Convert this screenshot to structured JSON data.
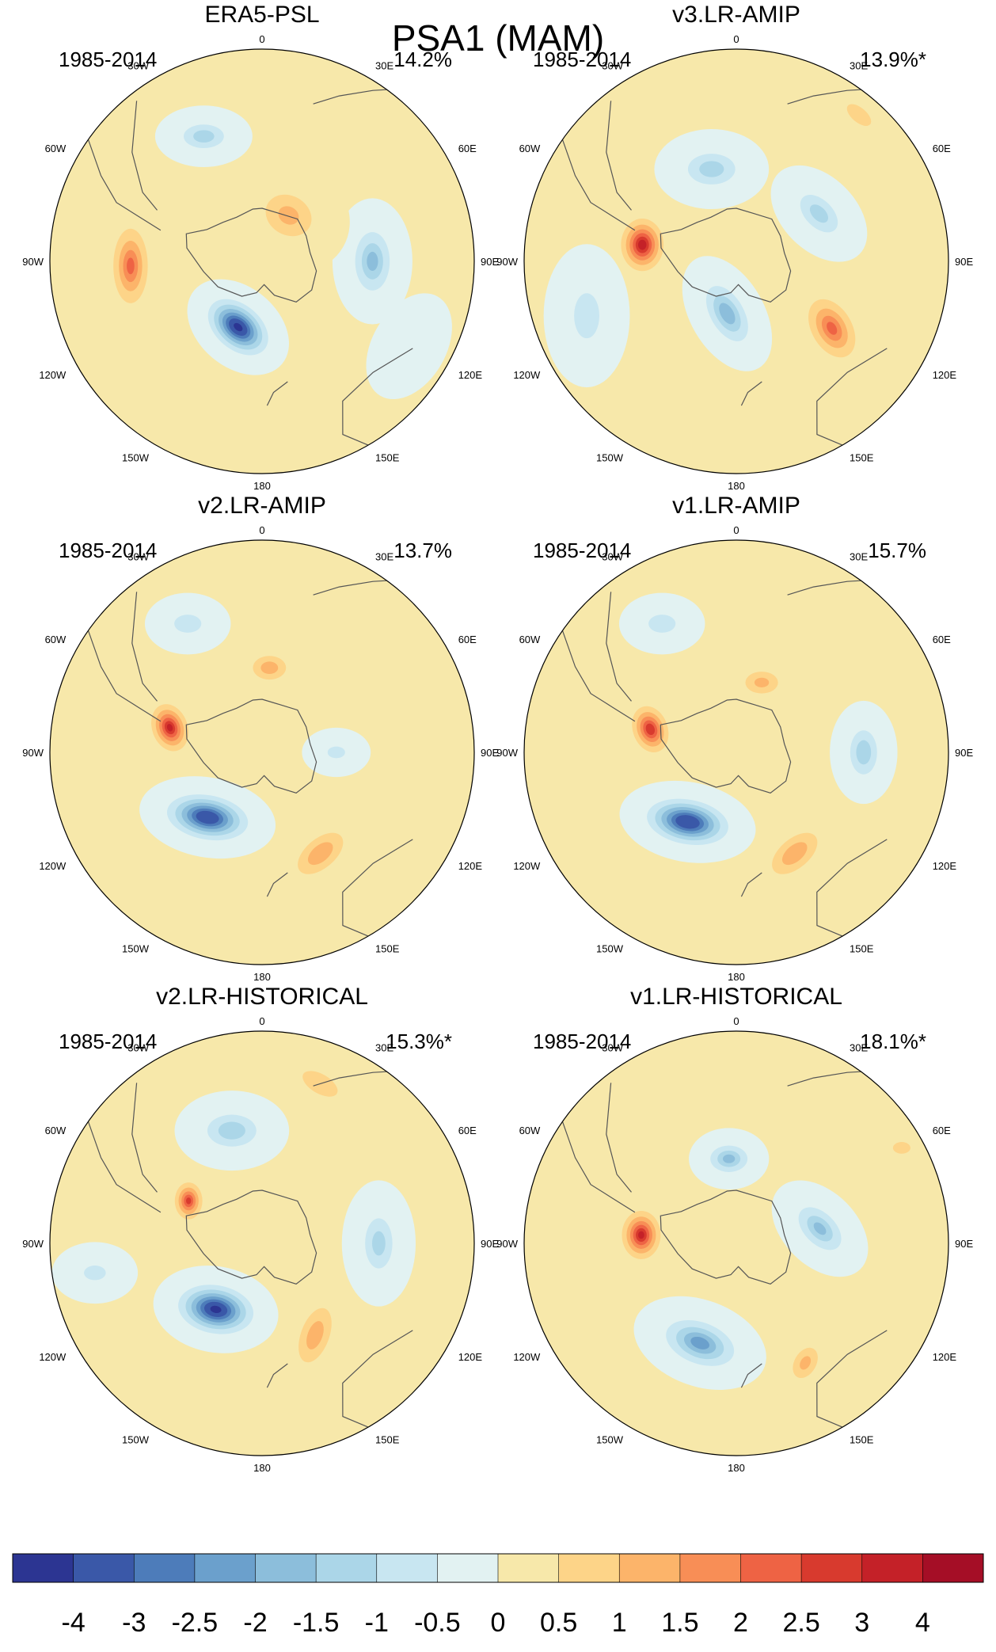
{
  "figure": {
    "title": "PSA1 (MAM)"
  },
  "chart_data": {
    "type": "heatmap",
    "title": "PSA1 (MAM)",
    "projection": "south polar stereographic",
    "lon_labels": [
      "0",
      "30E",
      "60E",
      "90E",
      "120E",
      "150E",
      "180",
      "150W",
      "120W",
      "90W",
      "60W",
      "30W"
    ],
    "colorbar": {
      "labels": [
        "-4",
        "-3",
        "-2.5",
        "-2",
        "-1.5",
        "-1",
        "-0.5",
        "0",
        "0.5",
        "1",
        "1.5",
        "2",
        "2.5",
        "3",
        "4"
      ],
      "colors": [
        "#2c3592",
        "#3a58a8",
        "#4d7cba",
        "#6ba0cc",
        "#8cbedb",
        "#abd6e8",
        "#c8e6f1",
        "#e2f2f2",
        "#f7e8aa",
        "#fdd488",
        "#fcb46a",
        "#f88e56",
        "#ee6344",
        "#d83a2e",
        "#c42128",
        "#a50e26"
      ]
    },
    "panels": [
      {
        "title": "ERA5-PSL",
        "period": "1985-2014",
        "variance": "14.2%",
        "features": [
          {
            "lon": 200,
            "r": 0.33,
            "value": -4.0,
            "a": 0.2,
            "b": 0.13,
            "rot": 40
          },
          {
            "lon": 268,
            "r": 0.62,
            "value": 2.0,
            "a": 0.26,
            "b": 0.12,
            "rot": 90
          },
          {
            "lon": 90,
            "r": 0.52,
            "value": -1.6,
            "a": 0.22,
            "b": 0.13,
            "rot": 90
          },
          {
            "lon": 335,
            "r": 0.65,
            "value": -1.2,
            "a": 0.17,
            "b": 0.1,
            "rot": 0
          },
          {
            "lon": 30,
            "r": 0.25,
            "value": 1.0,
            "a": 0.22,
            "b": 0.18,
            "rot": 30
          },
          {
            "lon": 120,
            "r": 0.8,
            "value": -0.4,
            "a": 0.2,
            "b": 0.12,
            "rot": 120
          }
        ]
      },
      {
        "title": "v3.LR-AMIP",
        "period": "1985-2014",
        "variance": "13.9%*",
        "features": [
          {
            "lon": 280,
            "r": 0.45,
            "value": 3.2,
            "a": 0.16,
            "b": 0.13,
            "rot": 90
          },
          {
            "lon": 125,
            "r": 0.55,
            "value": 2.0,
            "a": 0.22,
            "b": 0.14,
            "rot": 60
          },
          {
            "lon": 190,
            "r": 0.25,
            "value": -1.8,
            "a": 0.22,
            "b": 0.12,
            "rot": 60
          },
          {
            "lon": 345,
            "r": 0.45,
            "value": -1.2,
            "a": 0.2,
            "b": 0.13,
            "rot": 0
          },
          {
            "lon": 60,
            "r": 0.45,
            "value": -1.1,
            "a": 0.2,
            "b": 0.12,
            "rot": 45
          },
          {
            "lon": 250,
            "r": 0.75,
            "value": -0.7,
            "a": 0.25,
            "b": 0.14,
            "rot": 90
          },
          {
            "lon": 40,
            "r": 0.9,
            "value": 0.5,
            "a": 0.2,
            "b": 0.1,
            "rot": 40
          }
        ]
      },
      {
        "title": "v2.LR-AMIP",
        "period": "1985-2014",
        "variance": "13.7%",
        "features": [
          {
            "lon": 285,
            "r": 0.45,
            "value": 3.0,
            "a": 0.15,
            "b": 0.11,
            "rot": 70
          },
          {
            "lon": 220,
            "r": 0.4,
            "value": -3.8,
            "a": 0.24,
            "b": 0.13,
            "rot": 10
          },
          {
            "lon": 150,
            "r": 0.55,
            "value": 1.3,
            "a": 0.22,
            "b": 0.12,
            "rot": 140
          },
          {
            "lon": 5,
            "r": 0.4,
            "value": 1.2,
            "a": 0.14,
            "b": 0.1,
            "rot": 0
          },
          {
            "lon": 330,
            "r": 0.7,
            "value": -0.7,
            "a": 0.15,
            "b": 0.1,
            "rot": 0
          },
          {
            "lon": 90,
            "r": 0.35,
            "value": -0.5,
            "a": 0.12,
            "b": 0.08,
            "rot": 0
          }
        ]
      },
      {
        "title": "v1.LR-AMIP",
        "period": "1985-2014",
        "variance": "15.7%",
        "features": [
          {
            "lon": 285,
            "r": 0.42,
            "value": 2.8,
            "a": 0.15,
            "b": 0.11,
            "rot": 70
          },
          {
            "lon": 215,
            "r": 0.4,
            "value": -3.9,
            "a": 0.24,
            "b": 0.13,
            "rot": 10
          },
          {
            "lon": 150,
            "r": 0.55,
            "value": 1.3,
            "a": 0.22,
            "b": 0.12,
            "rot": 140
          },
          {
            "lon": 90,
            "r": 0.6,
            "value": -1.3,
            "a": 0.18,
            "b": 0.11,
            "rot": 90
          },
          {
            "lon": 330,
            "r": 0.7,
            "value": -0.7,
            "a": 0.15,
            "b": 0.1,
            "rot": 0
          },
          {
            "lon": 20,
            "r": 0.35,
            "value": 1.0,
            "a": 0.15,
            "b": 0.1,
            "rot": 0
          }
        ]
      },
      {
        "title": "v2.LR-HISTORICAL",
        "period": "1985-2014",
        "variance": "15.3%*",
        "features": [
          {
            "lon": 215,
            "r": 0.38,
            "value": -4.0,
            "a": 0.22,
            "b": 0.14,
            "rot": 10
          },
          {
            "lon": 300,
            "r": 0.4,
            "value": 2.5,
            "a": 0.12,
            "b": 0.09,
            "rot": 90
          },
          {
            "lon": 150,
            "r": 0.5,
            "value": 1.2,
            "a": 0.24,
            "b": 0.12,
            "rot": 110
          },
          {
            "lon": 345,
            "r": 0.55,
            "value": -1.3,
            "a": 0.2,
            "b": 0.13,
            "rot": 0
          },
          {
            "lon": 90,
            "r": 0.55,
            "value": -1.1,
            "a": 0.22,
            "b": 0.12,
            "rot": 90
          },
          {
            "lon": 20,
            "r": 0.8,
            "value": 0.8,
            "a": 0.2,
            "b": 0.1,
            "rot": 30
          },
          {
            "lon": 260,
            "r": 0.8,
            "value": -0.5,
            "a": 0.15,
            "b": 0.1,
            "rot": 0
          }
        ]
      },
      {
        "title": "v1.LR-HISTORICAL",
        "period": "1985-2014",
        "variance": "18.1%*",
        "features": [
          {
            "lon": 275,
            "r": 0.45,
            "value": 3.0,
            "a": 0.15,
            "b": 0.12,
            "rot": 90
          },
          {
            "lon": 200,
            "r": 0.5,
            "value": -2.2,
            "a": 0.24,
            "b": 0.14,
            "rot": 20
          },
          {
            "lon": 355,
            "r": 0.4,
            "value": -1.6,
            "a": 0.14,
            "b": 0.1,
            "rot": 0
          },
          {
            "lon": 80,
            "r": 0.4,
            "value": -1.5,
            "a": 0.2,
            "b": 0.12,
            "rot": 45
          },
          {
            "lon": 150,
            "r": 0.65,
            "value": 1.0,
            "a": 0.15,
            "b": 0.1,
            "rot": 120
          },
          {
            "lon": 60,
            "r": 0.9,
            "value": 0.5,
            "a": 0.12,
            "b": 0.08,
            "rot": 0
          }
        ]
      }
    ]
  }
}
